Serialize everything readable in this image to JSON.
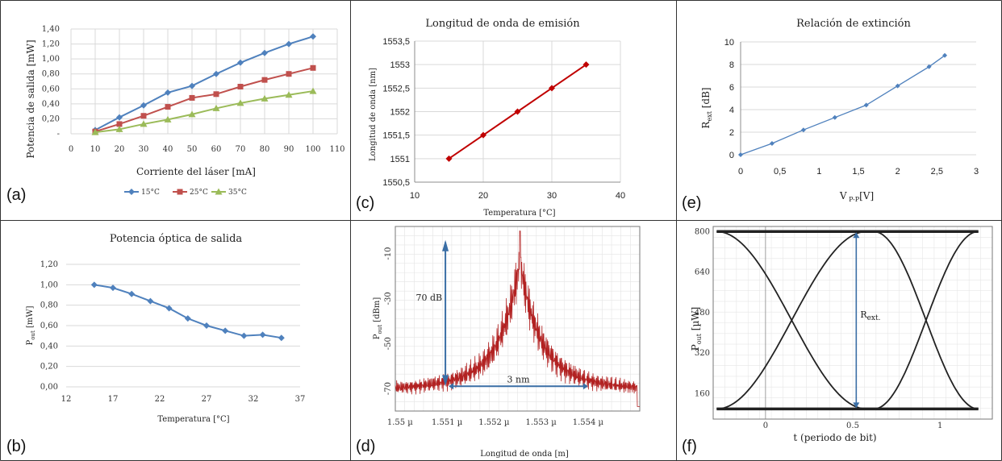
{
  "chart_data": [
    {
      "id": "a",
      "type": "line",
      "panel_label": "(a)",
      "title": "",
      "xlabel": "Corriente del láser [mA]",
      "ylabel": "Potencia de salida [mW]",
      "xlim": [
        0,
        110
      ],
      "ylim": [
        0,
        1.4
      ],
      "xticks": [
        "0",
        "10",
        "20",
        "30",
        "40",
        "50",
        "60",
        "70",
        "80",
        "90",
        "100",
        "110"
      ],
      "yticks": [
        "-",
        "0,20",
        "0,40",
        "0,60",
        "0,80",
        "1,00",
        "1,20",
        "1,40"
      ],
      "legend_position": "bottom",
      "x": [
        10,
        20,
        30,
        40,
        50,
        60,
        70,
        80,
        90,
        100
      ],
      "series": [
        {
          "name": "15°C",
          "color": "#4f81bd",
          "marker": "diamond",
          "values": [
            0.05,
            0.22,
            0.38,
            0.55,
            0.64,
            0.8,
            0.95,
            1.08,
            1.2,
            1.3
          ]
        },
        {
          "name": "25°C",
          "color": "#c0504d",
          "marker": "square",
          "values": [
            0.03,
            0.13,
            0.24,
            0.36,
            0.48,
            0.53,
            0.63,
            0.72,
            0.8,
            0.88
          ]
        },
        {
          "name": "35°C",
          "color": "#9bbb59",
          "marker": "triangle",
          "values": [
            0.02,
            0.06,
            0.13,
            0.19,
            0.26,
            0.34,
            0.41,
            0.47,
            0.52,
            0.57
          ]
        }
      ]
    },
    {
      "id": "b",
      "type": "line",
      "panel_label": "(b)",
      "title": "Potencia óptica de salida",
      "xlabel": "Temperatura  [°C]",
      "ylabel_main": "P",
      "ylabel_sub": "out",
      "ylabel_rest": " [mW]",
      "xlim": [
        12,
        37
      ],
      "ylim": [
        0,
        1.2
      ],
      "xticks": [
        "12",
        "17",
        "22",
        "27",
        "32",
        "37"
      ],
      "xtick_values": [
        12,
        17,
        22,
        27,
        32,
        37
      ],
      "yticks": [
        "0,00",
        "0,20",
        "0,40",
        "0,60",
        "0,80",
        "1,00",
        "1,20"
      ],
      "color": "#4f81bd",
      "x": [
        15,
        17,
        19,
        21,
        23,
        25,
        27,
        29,
        31,
        33,
        35
      ],
      "values": [
        1.0,
        0.97,
        0.91,
        0.84,
        0.77,
        0.67,
        0.6,
        0.55,
        0.5,
        0.51,
        0.48
      ]
    },
    {
      "id": "c",
      "type": "line",
      "panel_label": "(c)",
      "title": "Longitud de onda de emisión",
      "xlabel": "Temperatura [°C]",
      "ylabel": "Longitud de onda [nm]",
      "xlim": [
        10,
        40
      ],
      "ylim": [
        1550.5,
        1553.5
      ],
      "xticks": [
        "10",
        "20",
        "30",
        "40"
      ],
      "xtick_values": [
        10,
        20,
        30,
        40
      ],
      "yticks": [
        "1550,5",
        "1551",
        "1551,5",
        "1552",
        "1552,5",
        "1553",
        "1553,5"
      ],
      "color": "#c00000",
      "x": [
        15,
        20,
        25,
        30,
        35
      ],
      "values": [
        1551.0,
        1551.5,
        1552.0,
        1552.5,
        1553.0
      ]
    },
    {
      "id": "d",
      "type": "line",
      "panel_label": "(d)",
      "title": "",
      "xlabel": "Longitud de onda [m]",
      "ylabel_main": "P",
      "ylabel_sub": "out",
      "ylabel_rest": " [dBm]",
      "xlim": [
        1.5499,
        1.5551
      ],
      "ylim": [
        -80,
        2
      ],
      "xticks": [
        "1.55 µ",
        "1.551 µ",
        "1.552 µ",
        "1.553 µ",
        "1.554 µ"
      ],
      "xtick_values": [
        1.55,
        1.551,
        1.552,
        1.553,
        1.554
      ],
      "yticks": [
        "-10",
        "-30",
        "-50",
        "-70"
      ],
      "ytick_values": [
        -10,
        -30,
        -50,
        -70
      ],
      "color": "#b22222",
      "peak_x": 1.55255,
      "peak_y": 0,
      "floor_y": -70,
      "annotations": [
        "70 dB",
        "3 nm"
      ]
    },
    {
      "id": "e",
      "type": "line",
      "panel_label": "(e)",
      "title": "Relación de extinción",
      "xlabel_main": "V",
      "xlabel_sub": " P-P",
      "xlabel_rest": "[V]",
      "ylabel_main": "R",
      "ylabel_sub": "ext",
      "ylabel_rest": " [dB]",
      "xlim": [
        0,
        3
      ],
      "ylim": [
        0,
        10
      ],
      "xticks": [
        "0",
        "0,5",
        "1",
        "1,5",
        "2",
        "2,5",
        "3"
      ],
      "xtick_values": [
        0,
        0.5,
        1,
        1.5,
        2,
        2.5,
        3
      ],
      "yticks": [
        "0",
        "2",
        "4",
        "6",
        "8",
        "10"
      ],
      "ytick_values": [
        0,
        2,
        4,
        6,
        8,
        10
      ],
      "color": "#4f81bd",
      "x": [
        0,
        0.4,
        0.8,
        1.2,
        1.6,
        2.0,
        2.4,
        2.6
      ],
      "values": [
        0,
        1.0,
        2.2,
        3.3,
        4.4,
        6.1,
        7.8,
        8.8
      ]
    },
    {
      "id": "f",
      "type": "line",
      "panel_label": "(f)",
      "title": "",
      "xlabel": "t  (periodo de bit)",
      "ylabel_main": "P",
      "ylabel_sub": "out",
      "ylabel_rest": " [µW]",
      "xlim": [
        -0.3,
        1.3
      ],
      "ylim": [
        60,
        820
      ],
      "xticks": [
        "0",
        "0.5",
        "1"
      ],
      "xtick_values": [
        0,
        0.5,
        1
      ],
      "yticks": [
        "160",
        "320",
        "480",
        "640",
        "800"
      ],
      "ytick_values": [
        160,
        320,
        480,
        640,
        800
      ],
      "level_high": 800,
      "level_low": 100,
      "annotation_main": "R",
      "annotation_sub": "ext."
    }
  ]
}
